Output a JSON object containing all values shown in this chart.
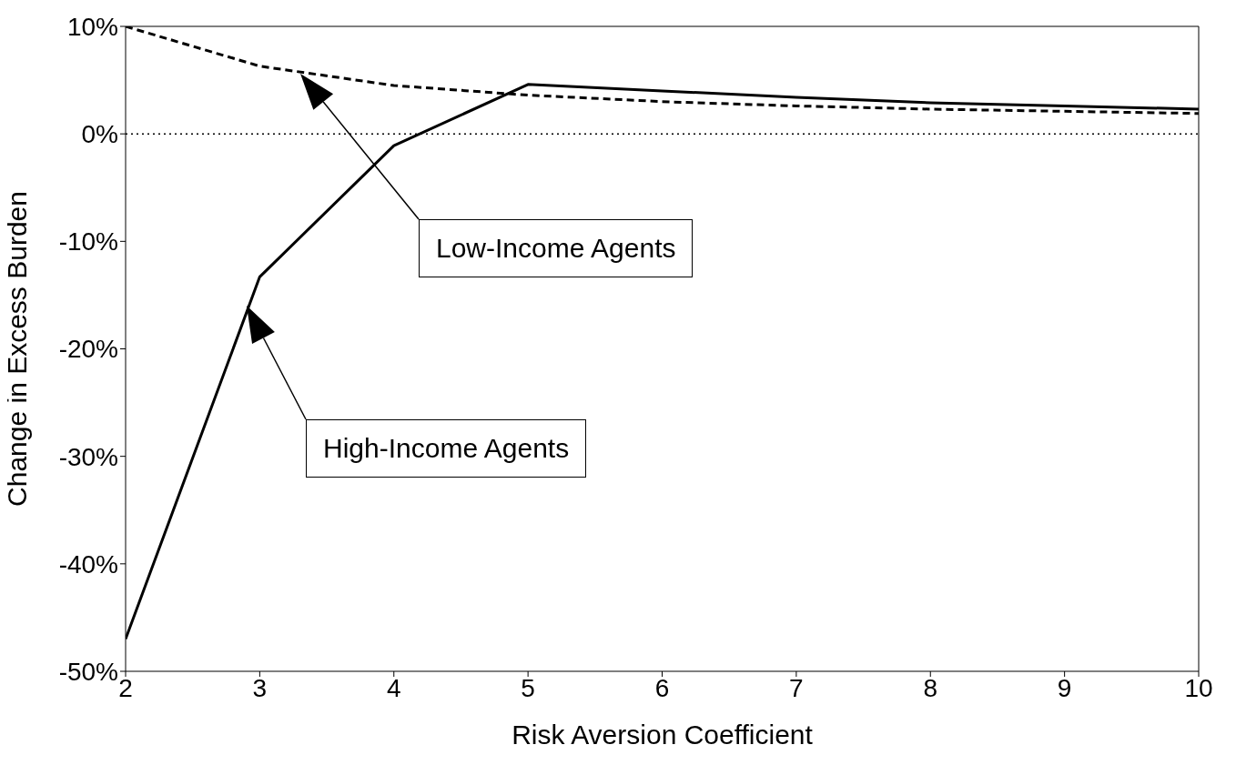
{
  "chart_data": {
    "type": "line",
    "xlabel": "Risk Aversion Coefficient",
    "ylabel": "Change in Excess Burden",
    "x": [
      2,
      3,
      4,
      5,
      6,
      7,
      8,
      9,
      10
    ],
    "series": [
      {
        "color": "#000000",
        "line_style": "solid",
        "values": [
          -47,
          -13.3,
          -1.1,
          4.6,
          4.0,
          3.4,
          2.9,
          2.6,
          2.3
        ]
      },
      {
        "color": "#000000",
        "line_style": "dashed",
        "values": [
          10,
          6.3,
          4.5,
          3.6,
          3.0,
          2.6,
          2.3,
          2.1,
          1.9
        ]
      }
    ],
    "xlim": [
      2,
      10
    ],
    "xticks": [
      2,
      3,
      4,
      5,
      6,
      7,
      8,
      9,
      10
    ],
    "ylim": [
      -50,
      10
    ],
    "yticks": [
      {
        "value": -50,
        "label": "-50%"
      },
      {
        "value": -40,
        "label": "-40%"
      },
      {
        "value": -30,
        "label": "-30%"
      },
      {
        "value": -20,
        "label": "-20%"
      },
      {
        "value": -10,
        "label": "-10%"
      },
      {
        "value": 0,
        "label": "0%"
      },
      {
        "value": 10,
        "label": "10%"
      }
    ],
    "ref_lines": [
      {
        "axis": "y",
        "value": 0,
        "color": "#000000",
        "line_style": "dotted"
      }
    ],
    "annotations": [
      "Low-Income Agents",
      "High-Income Agents"
    ],
    "marker": "none",
    "grid": false,
    "legend": false
  }
}
